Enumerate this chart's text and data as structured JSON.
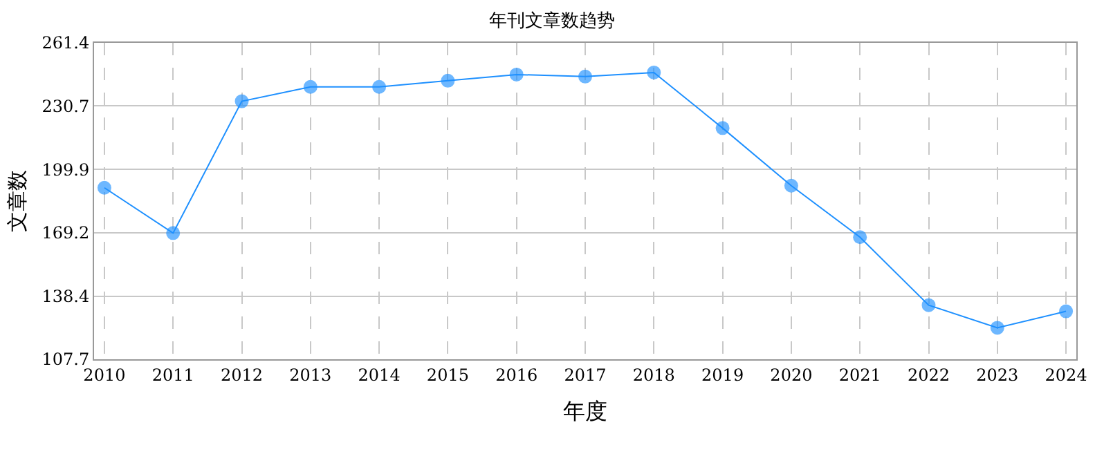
{
  "chart_data": {
    "type": "line",
    "title": "年刊文章数趋势",
    "xlabel": "年度",
    "ylabel": "文章数",
    "categories": [
      "2010",
      "2011",
      "2012",
      "2013",
      "2014",
      "2015",
      "2016",
      "2017",
      "2018",
      "2019",
      "2020",
      "2021",
      "2022",
      "2023",
      "2024"
    ],
    "series": [
      {
        "color": "#1e90ff",
        "values": [
          191,
          169,
          233,
          240,
          240,
          243,
          246,
          245,
          247,
          220,
          192,
          167,
          134,
          123,
          131
        ]
      }
    ],
    "ylim": [
      107.7,
      261.4
    ],
    "yticks": [
      107.7,
      138.4,
      169.2,
      199.9,
      230.7,
      261.4
    ],
    "grid": true,
    "marker": "circle",
    "line_style": "solid"
  }
}
